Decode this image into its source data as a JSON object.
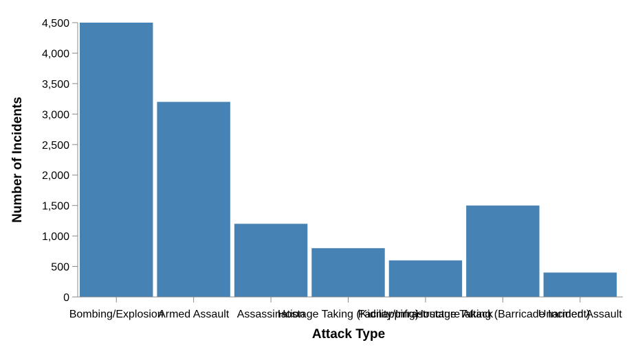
{
  "chart_data": {
    "type": "bar",
    "title": "",
    "xlabel": "Attack Type",
    "ylabel": "Number of Incidents",
    "categories": [
      "Bombing/Explosion",
      "Armed Assault",
      "Assassination",
      "Hostage Taking (Kidnapping)",
      "Facility/Infrastructure Attack",
      "Hostage Taking (Barricade Incident)",
      "Unarmed Assault"
    ],
    "values": [
      4500,
      3200,
      1200,
      800,
      600,
      1500,
      400
    ],
    "ylim": [
      0,
      4500
    ],
    "yticks": [
      0,
      500,
      1000,
      1500,
      2000,
      2500,
      3000,
      3500,
      4000,
      4500
    ],
    "ytick_labels": [
      "0",
      "500",
      "1,000",
      "1,500",
      "2,000",
      "2,500",
      "3,000",
      "3,500",
      "4,000",
      "4,500"
    ],
    "grid": false,
    "legend": "none",
    "bar_color": "#4682b4"
  }
}
